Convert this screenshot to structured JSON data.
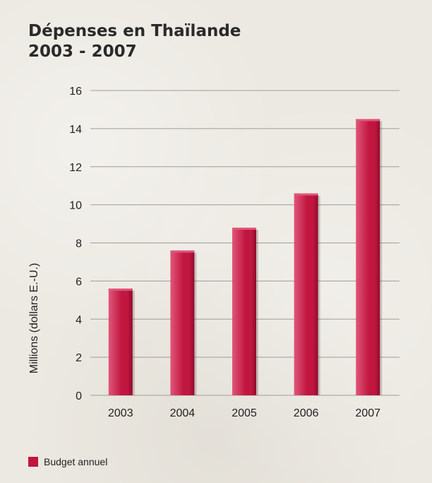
{
  "title": {
    "line1": "Dépenses en Thaïlande",
    "line2": "2003 - 2007"
  },
  "legend": {
    "label": "Budget annuel",
    "color": "#c0163f"
  },
  "chart_data": {
    "type": "bar",
    "title": "Dépenses en Thaïlande 2003 - 2007",
    "xlabel": "",
    "ylabel": "Millions (dollars E.-U.)",
    "categories": [
      "2003",
      "2004",
      "2005",
      "2006",
      "2007"
    ],
    "series": [
      {
        "name": "Budget annuel",
        "values": [
          5.6,
          7.6,
          8.8,
          10.6,
          14.5
        ]
      }
    ],
    "ylim": [
      0,
      16
    ],
    "yticks": [
      0,
      2,
      4,
      6,
      8,
      10,
      12,
      14,
      16
    ],
    "grid": true,
    "legend_position": "bottom-left",
    "colors": {
      "bar": "#c0163f",
      "bar_highlight": "#e0567a",
      "bar_shadow": "#8e0c2c",
      "grid": "#a09d98"
    }
  }
}
